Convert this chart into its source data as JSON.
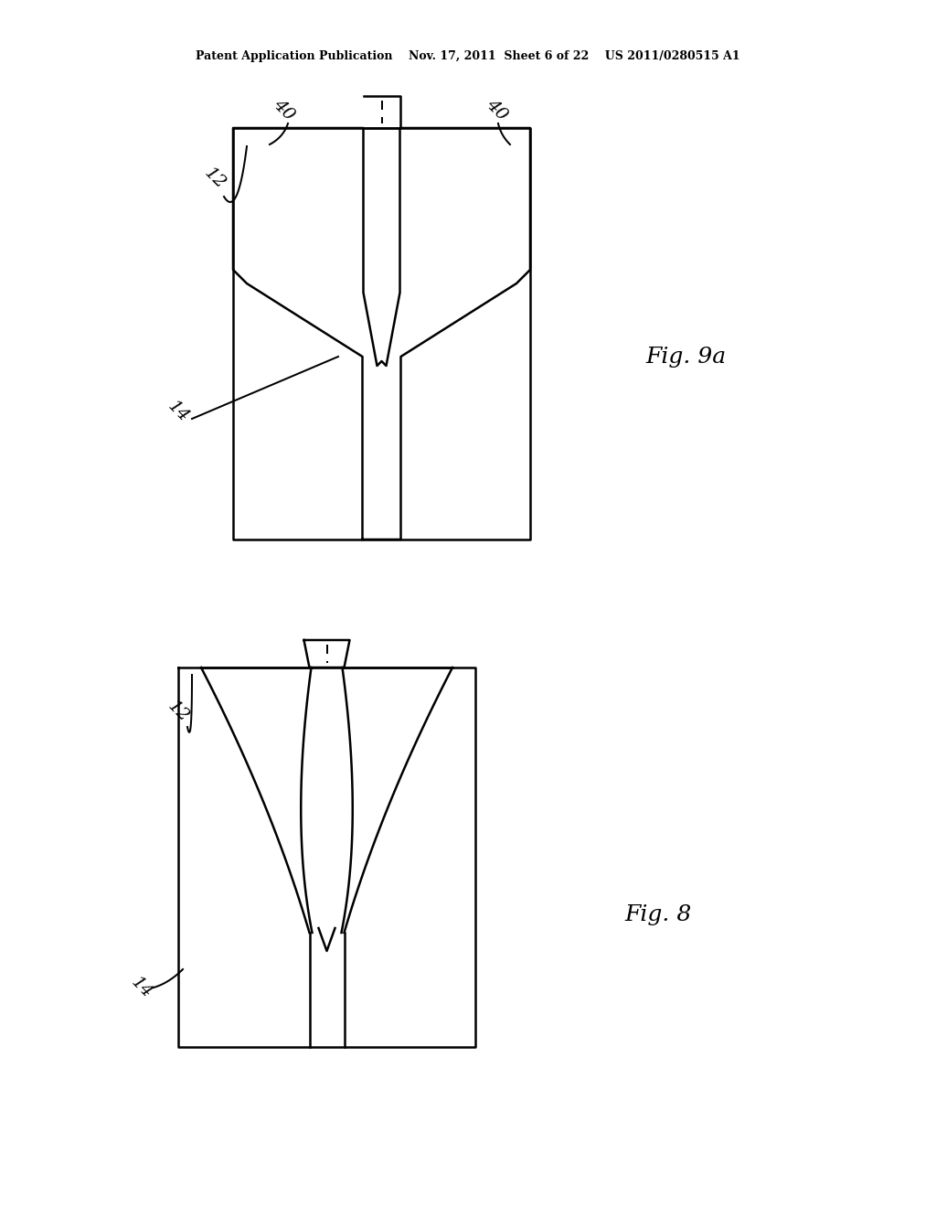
{
  "bg_color": "#ffffff",
  "line_color": "#000000",
  "header_text": "Patent Application Publication    Nov. 17, 2011  Sheet 6 of 22    US 2011/0280515 A1"
}
